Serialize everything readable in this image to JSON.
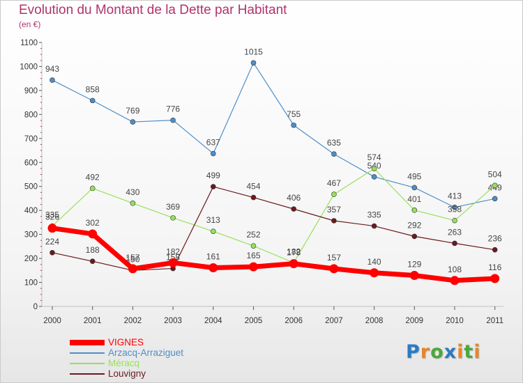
{
  "header": {
    "title": "Evolution du Montant de la Dette par Habitant",
    "unit": "(en €)"
  },
  "logo": {
    "text": "Proxiti",
    "letters": [
      {
        "ch": "P",
        "color": "#2b7bc4"
      },
      {
        "ch": "r",
        "color": "#e8862a"
      },
      {
        "ch": "o",
        "color": "#4aa83a"
      },
      {
        "ch": "x",
        "color": "#2b7bc4"
      },
      {
        "ch": "i",
        "color": "#e8862a"
      },
      {
        "ch": "t",
        "color": "#4aa83a"
      },
      {
        "ch": "i",
        "color": "#e8862a"
      }
    ]
  },
  "chart_data": {
    "type": "line",
    "title": "Evolution du Montant de la Dette par Habitant",
    "ylabel": "(en €)",
    "xlabel": "",
    "x": [
      "2000",
      "2001",
      "2002",
      "2003",
      "2004",
      "2005",
      "2006",
      "2007",
      "2008",
      "2009",
      "2010",
      "2011"
    ],
    "ylim": [
      0,
      1100
    ],
    "yticks": [
      0,
      100,
      200,
      300,
      400,
      500,
      600,
      700,
      800,
      900,
      1000,
      1100
    ],
    "grid": false,
    "legend": "bottom-left",
    "series": [
      {
        "name": "Arzacq-Arraziguet",
        "color": "#4d8ec9",
        "values": [
          943,
          858,
          769,
          776,
          637,
          1015,
          755,
          635,
          540,
          495,
          413,
          449
        ]
      },
      {
        "name": "Méracq",
        "color": "#99e05a",
        "values": [
          335,
          492,
          430,
          369,
          313,
          252,
          182,
          467,
          574,
          401,
          358,
          504
        ]
      },
      {
        "name": "Louvigny",
        "color": "#6b1a1e",
        "values": [
          224,
          188,
          150,
          158,
          499,
          454,
          406,
          357,
          335,
          292,
          263,
          236
        ]
      },
      {
        "name": "VIGNES",
        "color": "#ff0000",
        "values": [
          326,
          302,
          157,
          182,
          161,
          165,
          178,
          157,
          140,
          129,
          108,
          116
        ]
      }
    ],
    "legend_order": [
      "VIGNES",
      "Arzacq-Arraziguet",
      "Méracq",
      "Louvigny"
    ]
  }
}
